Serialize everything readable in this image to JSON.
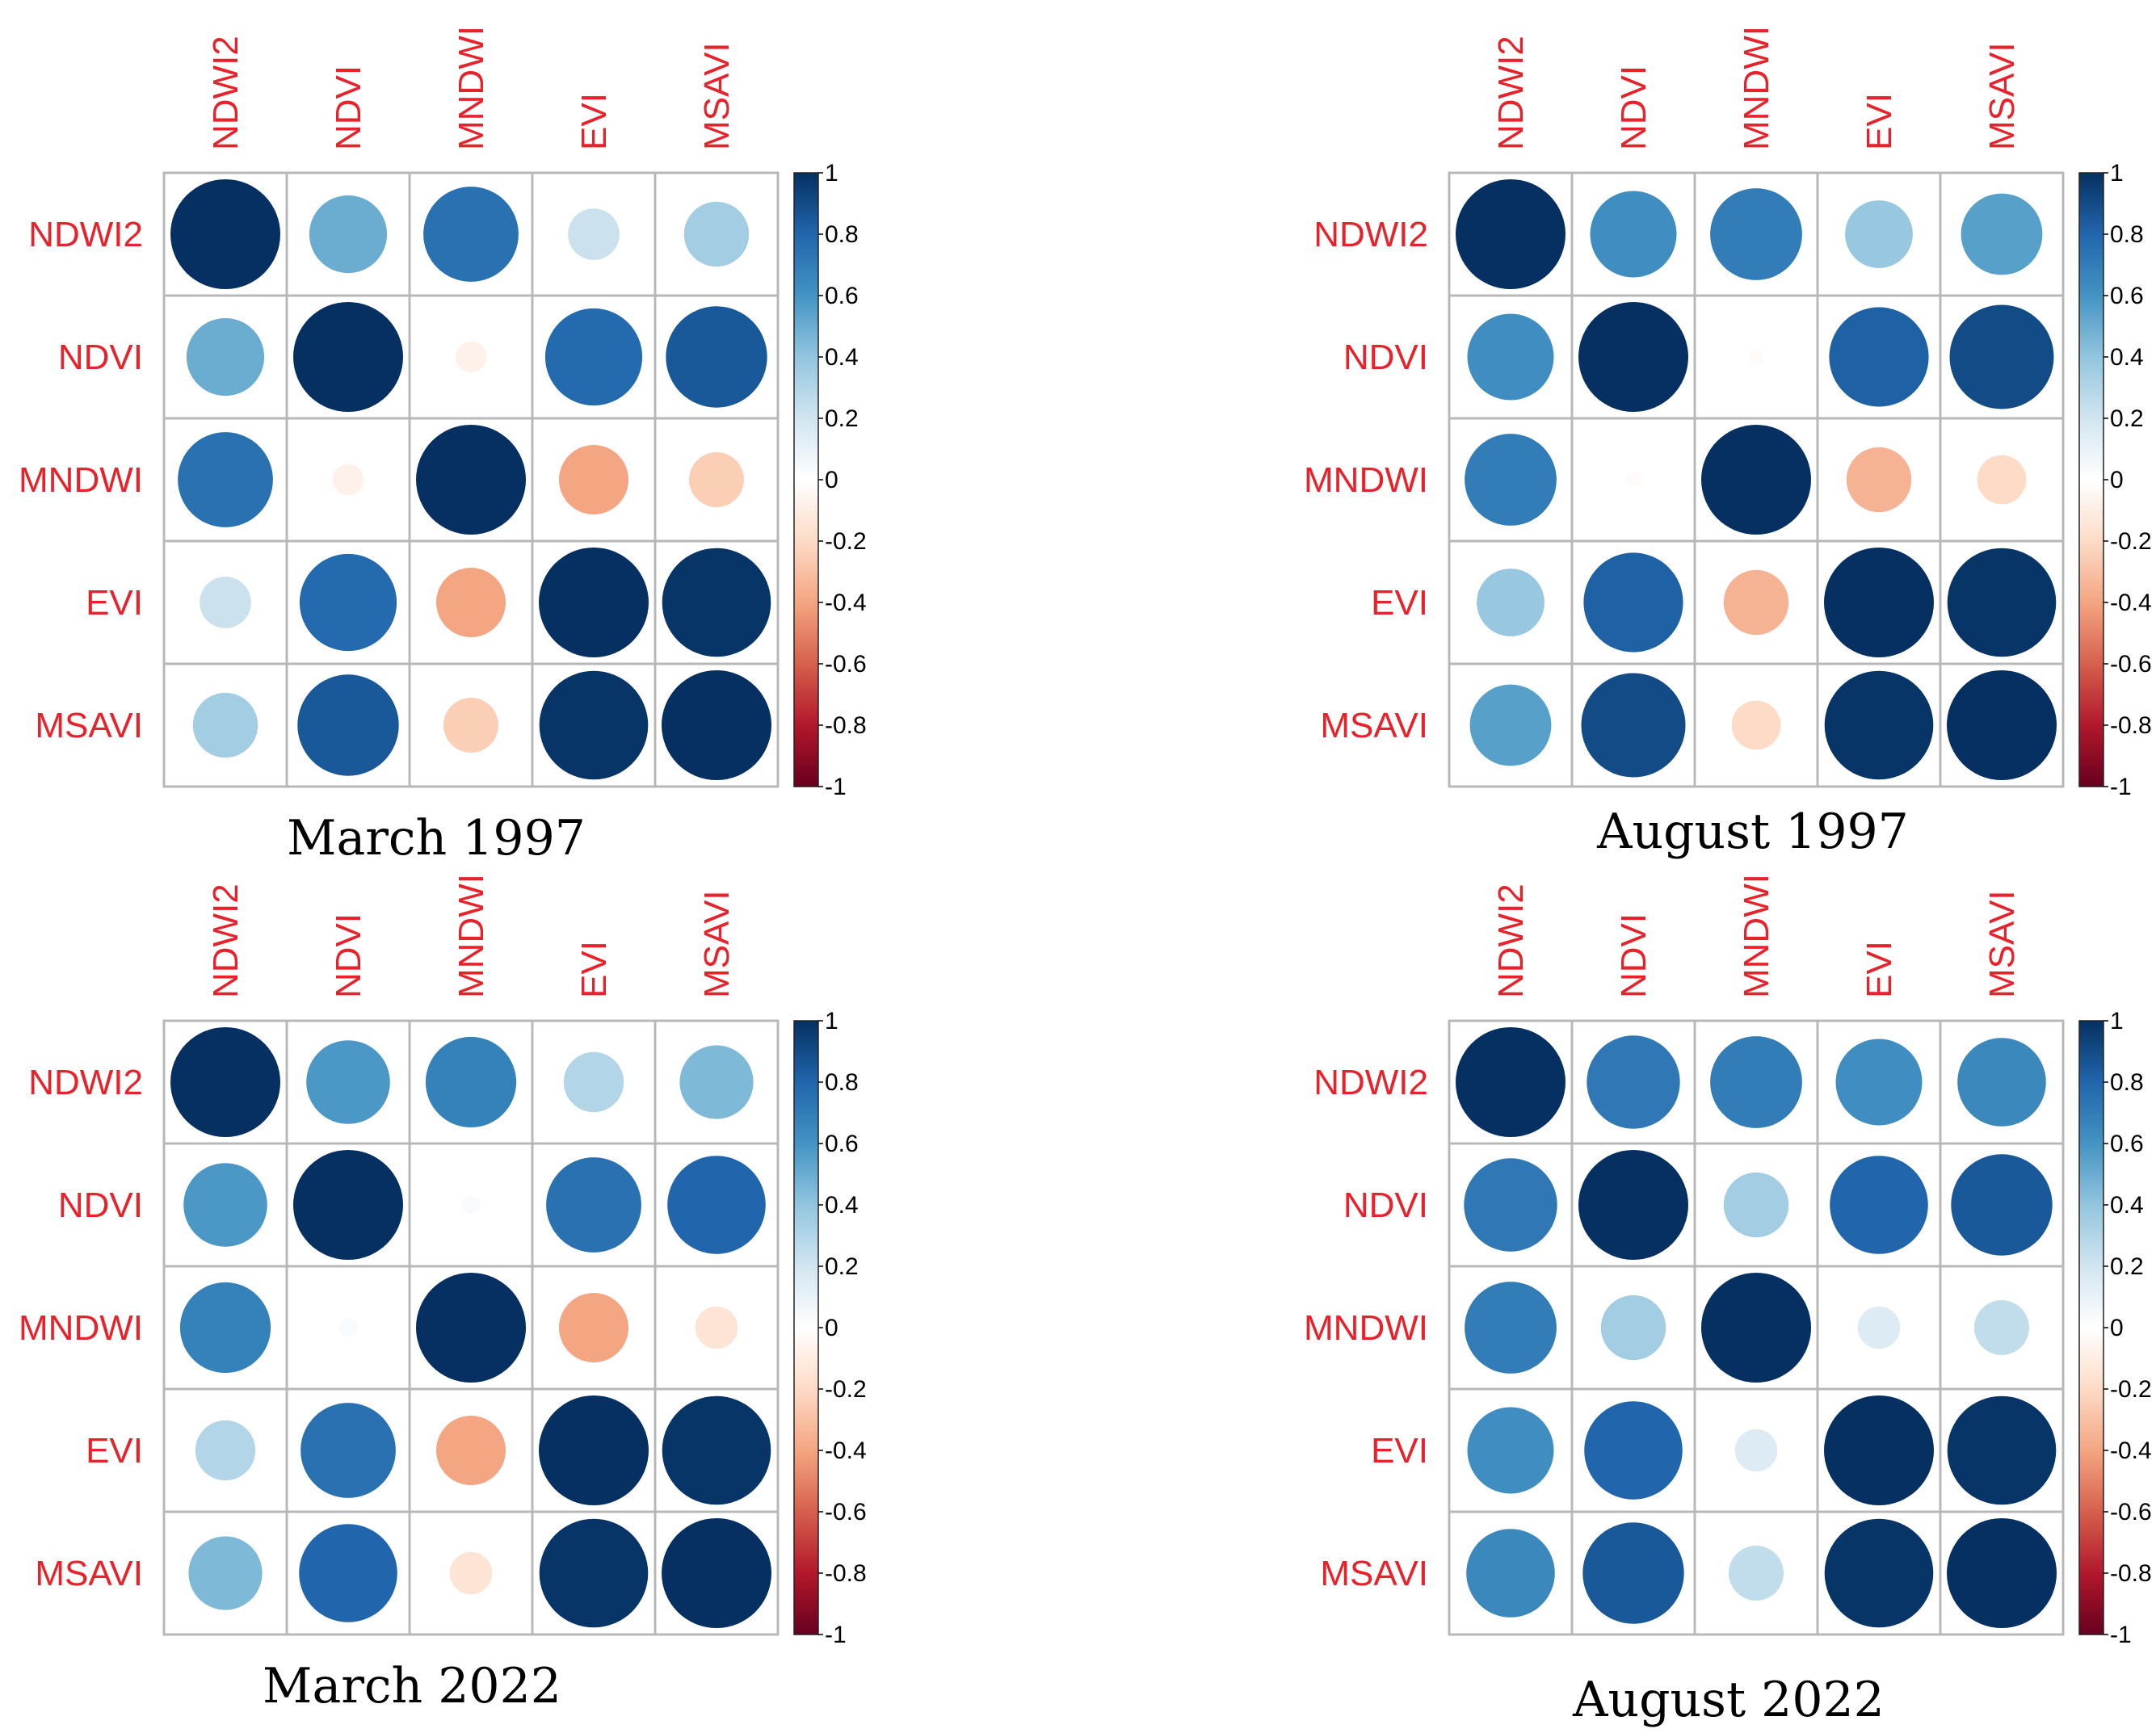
{
  "chart_data": [
    {
      "type": "heatmap",
      "title": "March 1997",
      "variables": [
        "NDWI2",
        "NDVI",
        "MNDWI",
        "EVI",
        "MSAVI"
      ],
      "values": [
        [
          1.0,
          0.5,
          0.75,
          0.22,
          0.35
        ],
        [
          0.5,
          1.0,
          -0.08,
          0.78,
          0.85
        ],
        [
          0.75,
          -0.08,
          1.0,
          -0.4,
          -0.25
        ],
        [
          0.22,
          0.78,
          -0.4,
          1.0,
          0.98
        ],
        [
          0.35,
          0.85,
          -0.25,
          0.98,
          1.0
        ]
      ],
      "colorbar": {
        "ticks": [
          "1",
          "0.8",
          "0.6",
          "0.4",
          "0.2",
          "0",
          "-0.2",
          "-0.4",
          "-0.6",
          "-0.8",
          "-1"
        ],
        "range": [
          -1,
          1
        ]
      }
    },
    {
      "type": "heatmap",
      "title": "August 1997",
      "variables": [
        "NDWI2",
        "NDVI",
        "MNDWI",
        "EVI",
        "MSAVI"
      ],
      "values": [
        [
          1.0,
          0.62,
          0.7,
          0.38,
          0.55
        ],
        [
          0.62,
          1.0,
          -0.02,
          0.82,
          0.9
        ],
        [
          0.7,
          -0.02,
          1.0,
          -0.35,
          -0.2
        ],
        [
          0.38,
          0.82,
          -0.35,
          1.0,
          0.98
        ],
        [
          0.55,
          0.9,
          -0.2,
          0.98,
          1.0
        ]
      ],
      "colorbar": {
        "ticks": [
          "1",
          "0.8",
          "0.6",
          "0.4",
          "0.2",
          "0",
          "-0.2",
          "-0.4",
          "-0.6",
          "-0.8",
          "-1"
        ],
        "range": [
          -1,
          1
        ]
      }
    },
    {
      "type": "heatmap",
      "title": "March 2022",
      "variables": [
        "NDWI2",
        "NDVI",
        "MNDWI",
        "EVI",
        "MSAVI"
      ],
      "values": [
        [
          1.0,
          0.58,
          0.68,
          0.3,
          0.45
        ],
        [
          0.58,
          1.0,
          0.03,
          0.75,
          0.8
        ],
        [
          0.68,
          0.03,
          1.0,
          -0.4,
          -0.15
        ],
        [
          0.3,
          0.75,
          -0.4,
          1.0,
          0.98
        ],
        [
          0.45,
          0.8,
          -0.15,
          0.98,
          1.0
        ]
      ],
      "colorbar": {
        "ticks": [
          "1",
          "0.8",
          "0.6",
          "0.4",
          "0.2",
          "0",
          "-0.2",
          "-0.4",
          "-0.6",
          "-0.8",
          "-1"
        ],
        "range": [
          -1,
          1
        ]
      }
    },
    {
      "type": "heatmap",
      "title": "August 2022",
      "variables": [
        "NDWI2",
        "NDVI",
        "MNDWI",
        "EVI",
        "MSAVI"
      ],
      "values": [
        [
          1.0,
          0.72,
          0.7,
          0.62,
          0.65
        ],
        [
          0.72,
          1.0,
          0.35,
          0.8,
          0.85
        ],
        [
          0.7,
          0.35,
          1.0,
          0.15,
          0.25
        ],
        [
          0.62,
          0.8,
          0.15,
          1.0,
          0.98
        ],
        [
          0.65,
          0.85,
          0.25,
          0.98,
          1.0
        ]
      ],
      "colorbar": {
        "ticks": [
          "1",
          "0.8",
          "0.6",
          "0.4",
          "0.2",
          "0",
          "-0.2",
          "-0.4",
          "-0.6",
          "-0.8",
          "-1"
        ],
        "range": [
          -1,
          1
        ]
      }
    }
  ],
  "style": {
    "label_color": "#e8222a",
    "grid_color": "#b8b8b8",
    "palette": [
      "#67001f",
      "#b2182b",
      "#d6604d",
      "#f4a582",
      "#fddbc7",
      "#ffffff",
      "#d1e5f0",
      "#92c5de",
      "#4393c3",
      "#2166ac",
      "#053061"
    ]
  }
}
